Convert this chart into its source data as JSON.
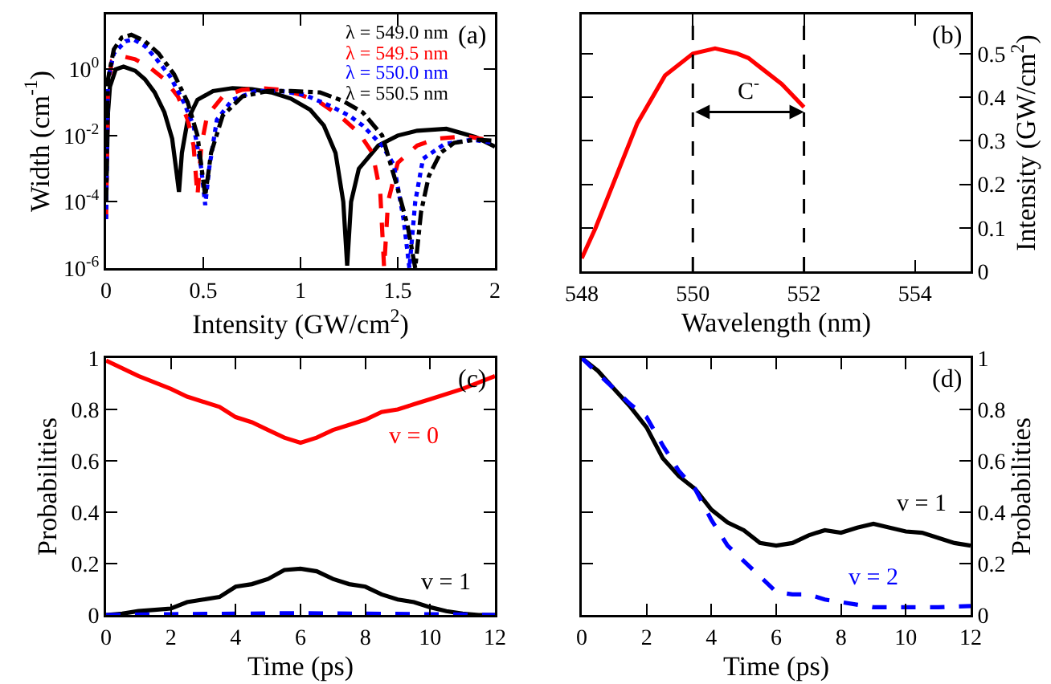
{
  "chart_data": [
    {
      "type": "line",
      "xlabel": "Intensity (GW/cm$^{2}$)",
      "ylabel": "Width (cm$^{-1}$)",
      "log": "y",
      "xlim": [
        0,
        2
      ],
      "xticks": [
        0,
        0.5,
        1,
        1.5,
        2
      ],
      "ylim": [
        1e-06,
        45
      ],
      "yticks": [
        {
          "value": 1e-06,
          "label": "10$^{-6}$"
        },
        {
          "value": 0.0001,
          "label": "10$^{-4}$"
        },
        {
          "value": 0.01,
          "label": "10$^{-2}$"
        },
        {
          "value": 1,
          "label": "10$^{0}$"
        }
      ],
      "legend": "top right",
      "annotations": [
        "(a)"
      ],
      "series": [
        {
          "name": "λ = 549.0 nm",
          "color": "#000000",
          "line_style": "solid",
          "x": [
            0,
            0.01,
            0.02,
            0.05,
            0.09,
            0.15,
            0.2,
            0.25,
            0.3,
            0.34,
            0.36,
            0.375,
            0.39,
            0.42,
            0.47,
            0.55,
            0.65,
            0.75,
            0.85,
            0.95,
            1.05,
            1.12,
            1.18,
            1.22,
            1.24,
            1.26,
            1.3,
            1.4,
            1.5,
            1.6,
            1.75,
            1.9,
            2.0
          ],
          "values": [
            0.0001,
            0.05,
            0.3,
            1.0,
            1.2,
            0.9,
            0.5,
            0.2,
            0.05,
            0.008,
            0.001,
            0.0002,
            0.003,
            0.03,
            0.12,
            0.22,
            0.27,
            0.25,
            0.2,
            0.13,
            0.06,
            0.02,
            0.003,
            0.0001,
            1.2e-06,
            0.0001,
            0.001,
            0.005,
            0.01,
            0.014,
            0.016,
            0.009,
            0.0046
          ]
        },
        {
          "name": "λ = 549.5 nm",
          "color": "#ff0000",
          "line_style": "dashed",
          "x": [
            0,
            0.01,
            0.03,
            0.08,
            0.15,
            0.22,
            0.3,
            0.37,
            0.42,
            0.45,
            0.47,
            0.49,
            0.52,
            0.6,
            0.7,
            0.8,
            0.9,
            1.0,
            1.1,
            1.2,
            1.3,
            1.37,
            1.41,
            1.43,
            1.45,
            1.5,
            1.6,
            1.7,
            1.85,
            2.0
          ],
          "values": [
            3e-05,
            0.3,
            1.8,
            2.5,
            2.0,
            1.2,
            0.5,
            0.15,
            0.03,
            0.005,
            0.00015,
            0.005,
            0.04,
            0.15,
            0.24,
            0.27,
            0.24,
            0.17,
            0.1,
            0.04,
            0.012,
            0.003,
            0.0002,
            1e-06,
            0.0001,
            0.0015,
            0.005,
            0.008,
            0.0096,
            0.0067
          ]
        },
        {
          "name": "λ = 550.0 nm",
          "color": "#0000ff",
          "line_style": "dotted",
          "x": [
            0,
            0.01,
            0.04,
            0.1,
            0.14,
            0.2,
            0.26,
            0.33,
            0.4,
            0.45,
            0.49,
            0.51,
            0.53,
            0.57,
            0.65,
            0.77,
            0.9,
            1.02,
            1.15,
            1.25,
            1.32,
            1.42,
            1.48,
            1.53,
            1.56,
            1.59,
            1.63,
            1.74,
            1.88,
            2.0
          ],
          "values": [
            3e-05,
            0.5,
            3,
            7,
            8,
            5,
            2,
            0.6,
            0.1,
            0.02,
            0.001,
            8e-05,
            0.001,
            0.03,
            0.12,
            0.22,
            0.22,
            0.17,
            0.08,
            0.04,
            0.02,
            0.005,
            0.0013,
            3e-05,
            1e-06,
            0.0001,
            0.002,
            0.0055,
            0.0075,
            0.006
          ]
        },
        {
          "name": "λ = 550.5 nm",
          "color": "#000000",
          "line_style": "dashdot",
          "x": [
            0,
            0.01,
            0.04,
            0.08,
            0.13,
            0.2,
            0.27,
            0.35,
            0.42,
            0.47,
            0.51,
            0.54,
            0.6,
            0.7,
            0.83,
            0.95,
            1.1,
            1.22,
            1.32,
            1.42,
            1.49,
            1.55,
            1.59,
            1.62,
            1.66,
            1.72,
            1.79,
            1.9,
            2.0
          ],
          "values": [
            0.0001,
            0.5,
            4,
            9,
            11,
            7,
            3,
            0.7,
            0.1,
            0.01,
            0.00015,
            0.003,
            0.04,
            0.15,
            0.22,
            0.22,
            0.2,
            0.11,
            0.05,
            0.01,
            0.0004,
            2e-05,
            1e-06,
            5e-05,
            0.0006,
            0.003,
            0.006,
            0.0075,
            0.007
          ]
        }
      ]
    },
    {
      "type": "line",
      "xlabel": "Wavelength (nm)",
      "ylabel": "Intensity (GW/cm$^{2}$)",
      "xlim": [
        548,
        555
      ],
      "xticks": [
        548,
        550,
        552,
        554
      ],
      "ylim": [
        0,
        0.59
      ],
      "yticks": [
        0,
        0.1,
        0.2,
        0.3,
        0.4,
        0.5
      ],
      "ref_lines": [
        {
          "axis": "x",
          "value": 550,
          "color": "#000000",
          "line_style": "dashed"
        },
        {
          "axis": "x",
          "value": 552,
          "color": "#000000",
          "line_style": "dashed"
        }
      ],
      "annotations": [
        "(b)",
        "C$^{-}$"
      ],
      "series": [
        {
          "color": "#ff0000",
          "line_style": "solid",
          "x": [
            548,
            548.25,
            548.5,
            549,
            549.5,
            550,
            550.4,
            550.8,
            551,
            551.2,
            551.6,
            552
          ],
          "values": [
            0.03,
            0.1,
            0.18,
            0.34,
            0.45,
            0.5,
            0.512,
            0.5,
            0.49,
            0.47,
            0.43,
            0.377
          ]
        }
      ]
    },
    {
      "type": "line",
      "xlabel": "Time (ps)",
      "ylabel": "Probabilities",
      "xlim": [
        0,
        12
      ],
      "xticks": [
        0,
        2,
        4,
        6,
        8,
        10,
        12
      ],
      "ylim": [
        0,
        1
      ],
      "yticks": [
        0,
        0.2,
        0.4,
        0.6,
        0.8,
        1
      ],
      "annotations": [
        "(c)"
      ],
      "series": [
        {
          "name": "v = 0",
          "color": "#ff0000",
          "line_style": "solid",
          "x": [
            0,
            1,
            2,
            2.5,
            3,
            3.5,
            4,
            4.5,
            5,
            5.5,
            6,
            6.5,
            7,
            7.5,
            8,
            8.5,
            9,
            9.5,
            10,
            11,
            12
          ],
          "values": [
            0.99,
            0.93,
            0.88,
            0.85,
            0.83,
            0.81,
            0.77,
            0.75,
            0.72,
            0.69,
            0.67,
            0.69,
            0.72,
            0.74,
            0.76,
            0.79,
            0.8,
            0.82,
            0.84,
            0.88,
            0.93
          ]
        },
        {
          "name": "v = 1",
          "color": "#000000",
          "line_style": "solid",
          "x": [
            0,
            0.5,
            1,
            1.5,
            2,
            2.5,
            3,
            3.5,
            4,
            4.5,
            5,
            5.5,
            6,
            6.5,
            7,
            7.5,
            8,
            8.5,
            9,
            9.5,
            10,
            10.5,
            11,
            11.5,
            12
          ],
          "values": [
            0,
            0.005,
            0.015,
            0.02,
            0.025,
            0.05,
            0.06,
            0.07,
            0.11,
            0.12,
            0.14,
            0.175,
            0.18,
            0.17,
            0.14,
            0.12,
            0.11,
            0.08,
            0.06,
            0.05,
            0.03,
            0.015,
            0.005,
            0,
            0
          ]
        },
        {
          "color": "#0000ff",
          "line_style": "dashed",
          "x": [
            0,
            2,
            4,
            6,
            8,
            10,
            12
          ],
          "values": [
            0,
            0.003,
            0.005,
            0.007,
            0.005,
            0.003,
            0
          ]
        }
      ]
    },
    {
      "type": "line",
      "xlabel": "Time (ps)",
      "ylabel": "Probabilities",
      "xlim": [
        0,
        12
      ],
      "xticks": [
        0,
        2,
        4,
        6,
        8,
        10,
        12
      ],
      "ylim": [
        0,
        1
      ],
      "yticks": [
        0,
        0.2,
        0.4,
        0.6,
        0.8,
        1
      ],
      "annotations": [
        "(d)"
      ],
      "series": [
        {
          "name": "v = 1",
          "color": "#000000",
          "line_style": "solid",
          "x": [
            0,
            0.5,
            1,
            1.5,
            2,
            2.5,
            3,
            3.5,
            4,
            4.5,
            5,
            5.5,
            6,
            6.5,
            7,
            7.5,
            8,
            8.5,
            9,
            9.5,
            10,
            10.5,
            11,
            11.5,
            12
          ],
          "values": [
            1,
            0.95,
            0.88,
            0.81,
            0.73,
            0.61,
            0.54,
            0.49,
            0.41,
            0.36,
            0.33,
            0.28,
            0.27,
            0.28,
            0.31,
            0.33,
            0.32,
            0.34,
            0.355,
            0.34,
            0.325,
            0.32,
            0.3,
            0.28,
            0.27
          ]
        },
        {
          "name": "v = 2",
          "color": "#0000ff",
          "line_style": "dashed",
          "x": [
            0,
            0.5,
            1,
            1.5,
            2,
            2.5,
            3,
            3.5,
            4,
            4.5,
            5,
            5.5,
            6,
            6.5,
            7,
            7.5,
            8,
            9,
            10,
            11,
            12
          ],
          "values": [
            1,
            0.94,
            0.88,
            0.82,
            0.77,
            0.66,
            0.56,
            0.49,
            0.37,
            0.27,
            0.21,
            0.15,
            0.09,
            0.08,
            0.08,
            0.06,
            0.05,
            0.03,
            0.03,
            0.03,
            0.035
          ]
        }
      ]
    }
  ]
}
